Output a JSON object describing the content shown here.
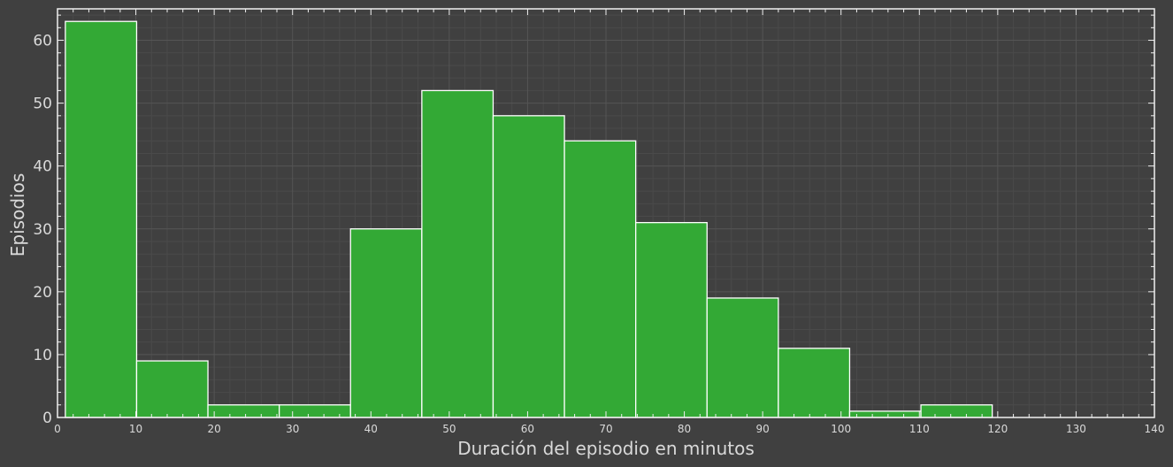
{
  "chart_data": {
    "type": "bar",
    "title": "",
    "xlabel": "Duración del episodio en minutos",
    "ylabel": "Episodios",
    "xlim": [
      0,
      140
    ],
    "ylim": [
      0,
      65
    ],
    "x_ticks": [
      "0",
      "10",
      "20",
      "30",
      "40",
      "50",
      "60",
      "70",
      "80",
      "90",
      "100",
      "110",
      "120",
      "130",
      "140"
    ],
    "y_ticks": [
      "0",
      "10",
      "20",
      "30",
      "40",
      "50",
      "60"
    ],
    "grid": true,
    "bin_edges": [
      1,
      10.1,
      19.2,
      28.3,
      37.4,
      46.5,
      55.6,
      64.7,
      73.8,
      82.9,
      92,
      101.1,
      110.2,
      119.3
    ],
    "values": [
      63,
      9,
      2,
      2,
      30,
      52,
      48,
      44,
      31,
      19,
      11,
      1,
      2
    ],
    "colors": {
      "background": "#404040",
      "bar": "#33a935",
      "bar_edge": "#ffffff",
      "grid": "#555555",
      "text": "#d9d9d9"
    }
  }
}
